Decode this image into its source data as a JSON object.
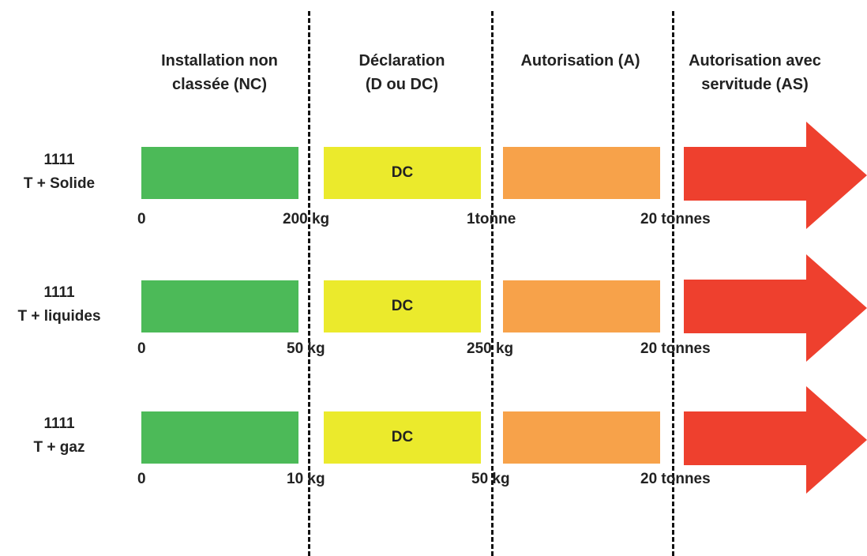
{
  "columns": [
    {
      "line1": "Installation non",
      "line2": "classée (NC)"
    },
    {
      "line1": "Déclaration",
      "line2": "(D ou DC)"
    },
    {
      "line1": "Autorisation (A)",
      "line2": ""
    },
    {
      "line1": "Autorisation avec",
      "line2": "servitude (AS)"
    }
  ],
  "colors": {
    "nc": "#4cba58",
    "d": "#ebea2c",
    "a": "#f7a24a",
    "as": "#ee402e"
  },
  "rows": [
    {
      "code": "1111",
      "substance": "T + Solide",
      "d_label": "DC",
      "t0": "0",
      "t1": "200 kg",
      "t2": "1tonne",
      "t3": "20 tonnes"
    },
    {
      "code": "1111",
      "substance": "T + liquides",
      "d_label": "DC",
      "t0": "0",
      "t1": "50 kg",
      "t2": "250 kg",
      "t3": "20 tonnes"
    },
    {
      "code": "1111",
      "substance": "T + gaz",
      "d_label": "DC",
      "t0": "0",
      "t1": "10 kg",
      "t2": "50 kg",
      "t3": "20 tonnes"
    }
  ]
}
